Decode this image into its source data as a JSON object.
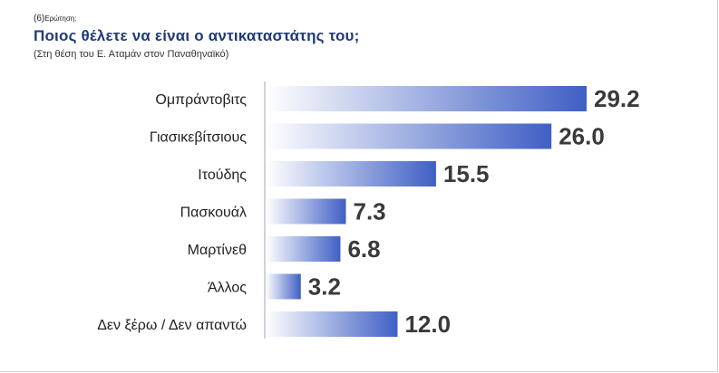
{
  "header": {
    "question_number": "(6)",
    "question_word": "Ερώτηση:",
    "title": "Ποιος θέλετε να είναι ο αντικαταστάτης  του;",
    "subtitle": "(Στη θέση του Ε. Αταμάν στον Παναθηναϊκό)"
  },
  "colors": {
    "bar_end": "#3f5fc4",
    "bar_start": "#ffffff",
    "axis": "#a6a6a6"
  },
  "chart_data": {
    "type": "bar",
    "orientation": "horizontal",
    "title": "Ποιος θέλετε να είναι ο αντικαταστάτης  του;",
    "subtitle": "(Στη θέση του Ε. Αταμάν στον Παναθηναϊκό)",
    "categories": [
      "Ομπράντοβιτς",
      "Γιασικεβίτσιους",
      "Ιτούδης",
      "Πασκουάλ",
      "Μαρτίνεθ",
      "Άλλος",
      "Δεν ξέρω / Δεν απαντώ"
    ],
    "values": [
      29.2,
      26.0,
      15.5,
      7.3,
      6.8,
      3.2,
      12.0
    ],
    "value_labels": [
      "29.2",
      "26.0",
      "15.5",
      "7.3",
      "6.8",
      "3.2",
      "12.0"
    ],
    "xlim": [
      0,
      29.2
    ],
    "grid": false,
    "legend": "none"
  }
}
